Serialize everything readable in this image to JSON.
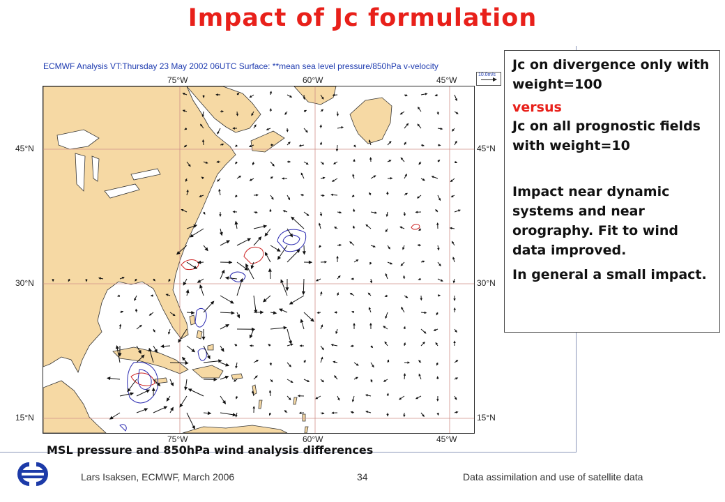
{
  "slide": {
    "title": "Impact of Jc formulation",
    "page_number": "34"
  },
  "map": {
    "header": "ECMWF Analysis VT:Thursday 23 May 2002 06UTC Surface: **mean sea level pressure/850hPa  v-velocity",
    "legend_label": "10.0m/s",
    "lon_labels": [
      "75°W",
      "60°W",
      "45°W"
    ],
    "lat_labels": [
      "45°N",
      "30°N",
      "15°N"
    ],
    "colors": {
      "land": "#f6d9a4",
      "coast": "#333333",
      "grid": "#cf8f88",
      "positive_contour": "#cc2222",
      "negative_contour": "#2a2ab0",
      "arrow": "#111111"
    }
  },
  "sidebar": {
    "para1": "Jc on divergence only with weight=100",
    "versus": "versus",
    "para3": "Jc on all prognostic fields with weight=10",
    "para4": "Impact near dynamic systems and near orography. Fit to wind data improved.",
    "para5": "In general a small impact."
  },
  "caption": "MSL pressure and 850hPa wind analysis differences",
  "footer": {
    "left": "Lars Isaksen, ECMWF, March 2006",
    "right": "Data assimilation and use of satellite data"
  },
  "logo": {
    "name": "ecmwf-logo",
    "color": "#1c3aa8"
  }
}
